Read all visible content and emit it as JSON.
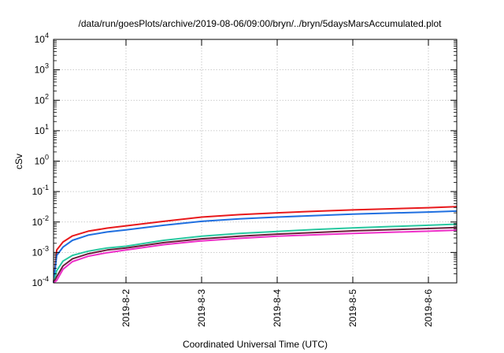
{
  "chart_data": {
    "type": "line",
    "title": "/data/run/goesPlots/archive/2019-08-06/09:00/bryn/../bryn/5daysMarsAccumulated.plot",
    "xlabel": "Coordinated Universal Time (UTC)",
    "ylabel": "cSv",
    "y_scale": "log",
    "ylim": [
      0.0001,
      10000
    ],
    "xlim": [
      "2019-08-01 01:00",
      "2019-08-06 09:00"
    ],
    "y_ticks": [
      {
        "base": "10",
        "exp": "-4"
      },
      {
        "base": "10",
        "exp": "-3"
      },
      {
        "base": "10",
        "exp": "-2"
      },
      {
        "base": "10",
        "exp": "-1"
      },
      {
        "base": "10",
        "exp": "0"
      },
      {
        "base": "10",
        "exp": "1"
      },
      {
        "base": "10",
        "exp": "2"
      },
      {
        "base": "10",
        "exp": "3"
      },
      {
        "base": "10",
        "exp": "4"
      }
    ],
    "x_ticks": [
      "2019-8-2",
      "2019-8-3",
      "2019-8-4",
      "2019-8-5",
      "2019-8-6"
    ],
    "grid": true,
    "legend": "none",
    "x": [
      "2019-08-01 01:00",
      "2019-08-01 02:00",
      "2019-08-01 04:00",
      "2019-08-01 07:00",
      "2019-08-01 12:00",
      "2019-08-01 18:00",
      "2019-08-02 00:00",
      "2019-08-02 12:00",
      "2019-08-03 00:00",
      "2019-08-03 12:00",
      "2019-08-04 00:00",
      "2019-08-04 12:00",
      "2019-08-05 00:00",
      "2019-08-05 12:00",
      "2019-08-06 00:00",
      "2019-08-06 09:00"
    ],
    "series": [
      {
        "color": "#e8191c",
        "values": [
          0.0001,
          0.0012,
          0.0022,
          0.0035,
          0.005,
          0.0063,
          0.0075,
          0.0105,
          0.0145,
          0.0175,
          0.02,
          0.0225,
          0.025,
          0.0272,
          0.0295,
          0.032
        ]
      },
      {
        "color": "#1f6fe0",
        "values": [
          0.0001,
          0.0008,
          0.0015,
          0.0025,
          0.0037,
          0.0047,
          0.0055,
          0.0078,
          0.0105,
          0.0127,
          0.0145,
          0.0163,
          0.0181,
          0.0197,
          0.0212,
          0.0228
        ]
      },
      {
        "color": "#28c8a0",
        "values": [
          0.0001,
          0.00025,
          0.00052,
          0.0008,
          0.0011,
          0.0014,
          0.0016,
          0.0025,
          0.0034,
          0.0042,
          0.0049,
          0.0057,
          0.0064,
          0.0071,
          0.0078,
          0.0085
        ]
      },
      {
        "color": "#6b1f3a",
        "values": [
          0.0001,
          0.00016,
          0.00036,
          0.00062,
          0.0009,
          0.0012,
          0.0014,
          0.0021,
          0.0028,
          0.0034,
          0.004,
          0.0045,
          0.0051,
          0.0056,
          0.0061,
          0.0066
        ]
      },
      {
        "color": "#ee2fc8",
        "values": [
          0.0001,
          0.00012,
          0.00028,
          0.0005,
          0.00075,
          0.00098,
          0.0012,
          0.0018,
          0.0024,
          0.0029,
          0.0034,
          0.0038,
          0.0042,
          0.0046,
          0.005,
          0.0054
        ]
      }
    ]
  }
}
